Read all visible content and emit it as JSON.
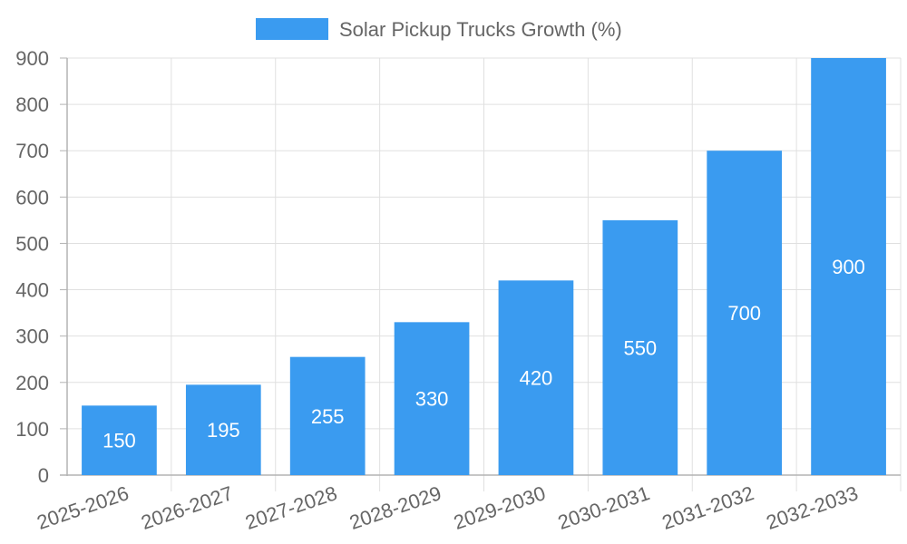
{
  "chart_data": {
    "type": "bar",
    "categories": [
      "2025-2026",
      "2026-2027",
      "2027-2028",
      "2028-2029",
      "2029-2030",
      "2030-2031",
      "2031-2032",
      "2032-2033"
    ],
    "series": [
      {
        "name": "Solar Pickup Trucks Growth (%)",
        "values": [
          150,
          195,
          255,
          330,
          420,
          550,
          700,
          900
        ]
      }
    ],
    "ylim": [
      0,
      900
    ],
    "yticks": [
      0,
      100,
      200,
      300,
      400,
      500,
      600,
      700,
      800,
      900
    ],
    "grid": true,
    "legend_position": "top-center",
    "data_labels": true,
    "colors": {
      "bar": "#3a9bf0",
      "grid": "#e0e0e0",
      "axis": "#b3b3b3",
      "text": "#666666",
      "data_label": "#ffffff"
    }
  }
}
